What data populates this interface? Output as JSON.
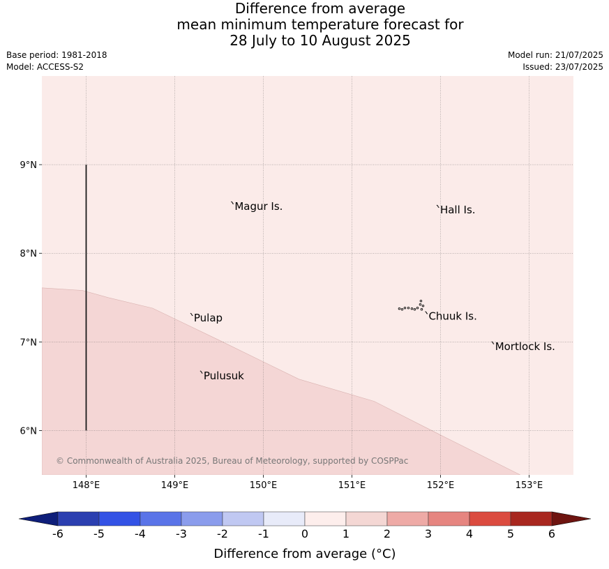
{
  "header": {
    "title_lines": [
      "Difference from average",
      "mean minimum temperature forecast for",
      "28 July to 10 August 2025"
    ],
    "base_period": "Base period: 1981-2018",
    "model": "Model: ACCESS-S2",
    "model_run": "Model run: 21/07/2025",
    "issued": "Issued: 23/07/2025"
  },
  "map": {
    "lon_range": [
      147.5,
      153.5
    ],
    "lat_range": [
      5.5,
      10.0
    ],
    "lon_ticks": [
      "148°E",
      "149°E",
      "150°E",
      "151°E",
      "152°E",
      "153°E"
    ],
    "lat_ticks": [
      "9°N",
      "8°N",
      "7°N",
      "6°N"
    ],
    "fill_colors": {
      "band_0_1": "#fbebe9",
      "band_1_2": "#f4d6d5",
      "gridline": "#555555",
      "boundary_line": "#1a1a1a"
    },
    "region_1_2_boundary_lonlat": [
      [
        147.5,
        7.61
      ],
      [
        147.96,
        7.58
      ],
      [
        148.25,
        7.5
      ],
      [
        148.75,
        7.38
      ],
      [
        149.5,
        7.02
      ],
      [
        150.4,
        6.58
      ],
      [
        151.25,
        6.33
      ],
      [
        152.0,
        5.95
      ],
      [
        152.9,
        5.5
      ]
    ],
    "meridian_line_lon": 148.0,
    "meridian_line_lat_range": [
      6.0,
      9.0
    ],
    "places": [
      {
        "name": "Magur Is.",
        "lon": 149.66,
        "lat": 8.56
      },
      {
        "name": "Hall Is.",
        "lon": 151.98,
        "lat": 8.52
      },
      {
        "name": "Pulap",
        "lon": 149.2,
        "lat": 7.3
      },
      {
        "name": "Chuuk Is.",
        "lon": 151.85,
        "lat": 7.32
      },
      {
        "name": "Mortlock Is.",
        "lon": 152.6,
        "lat": 6.98
      },
      {
        "name": "Pulusuk",
        "lon": 149.31,
        "lat": 6.65
      }
    ],
    "copyright": "© Commonwealth of Australia 2025, Bureau of Meteorology, supported by COSPPac"
  },
  "colorbar": {
    "ticks": [
      "-6",
      "-5",
      "-4",
      "-3",
      "-2",
      "-1",
      "0",
      "1",
      "2",
      "3",
      "4",
      "5",
      "6"
    ],
    "colors": [
      "#2b3fb0",
      "#3352e5",
      "#5a74e8",
      "#8a9cec",
      "#c0c8f2",
      "#e8ebf9",
      "#fdeeec",
      "#f4d7d4",
      "#eeaaa6",
      "#e68580",
      "#db4b3f",
      "#a8271f"
    ],
    "under_color": "#0e1e7a",
    "over_color": "#6e1410",
    "label": "Difference from average (°C)"
  }
}
